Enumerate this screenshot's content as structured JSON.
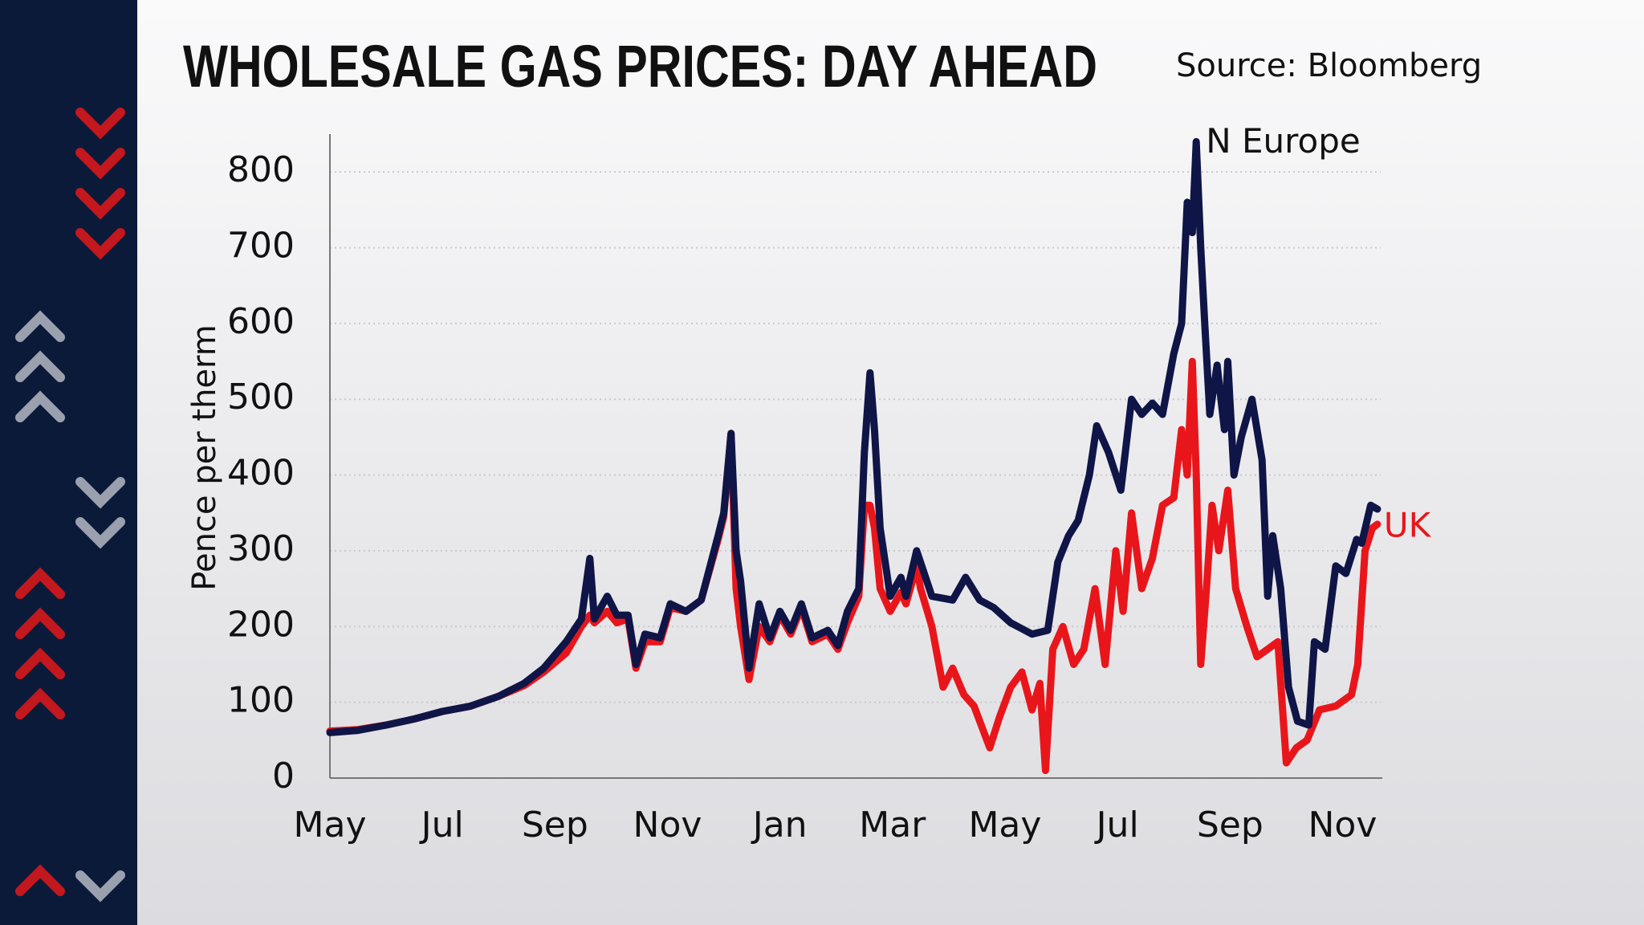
{
  "chart_data": {
    "type": "line",
    "title": "WHOLESALE GAS PRICES: DAY AHEAD",
    "source": "Source: Bloomberg",
    "y_label": "Pence per therm",
    "xlim": [
      0,
      18.65
    ],
    "xticks": [
      {
        "value": 0,
        "label": "May"
      },
      {
        "value": 2,
        "label": "Jul"
      },
      {
        "value": 4,
        "label": "Sep"
      },
      {
        "value": 6,
        "label": "Nov"
      },
      {
        "value": 8,
        "label": "Jan"
      },
      {
        "value": 10,
        "label": "Mar"
      },
      {
        "value": 12,
        "label": "May"
      },
      {
        "value": 14,
        "label": "Jul"
      },
      {
        "value": 16,
        "label": "Sep"
      },
      {
        "value": 18,
        "label": "Nov"
      }
    ],
    "ylim": [
      0,
      850
    ],
    "yticks": [
      0,
      100,
      200,
      300,
      400,
      500,
      600,
      700,
      800
    ],
    "grid": true,
    "series": [
      {
        "name": "N Europe",
        "color": "#0f1547",
        "x": [
          0,
          0.5,
          1,
          1.5,
          2,
          2.5,
          3,
          3.45,
          3.8,
          4.2,
          4.47,
          4.62,
          4.7,
          4.93,
          5.1,
          5.3,
          5.44,
          5.6,
          5.87,
          6.05,
          6.33,
          6.6,
          6.9,
          7.0,
          7.13,
          7.22,
          7.3,
          7.45,
          7.63,
          7.82,
          8.0,
          8.19,
          8.38,
          8.57,
          8.85,
          9.03,
          9.2,
          9.4,
          9.5,
          9.6,
          9.68,
          9.78,
          9.96,
          10.15,
          10.24,
          10.43,
          10.7,
          11.07,
          11.3,
          11.55,
          11.8,
          12.1,
          12.48,
          12.76,
          12.94,
          13.13,
          13.3,
          13.5,
          13.63,
          13.84,
          14.06,
          14.25,
          14.43,
          14.62,
          14.8,
          15.0,
          15.14,
          15.24,
          15.33,
          15.4,
          15.48,
          15.55,
          15.64,
          15.77,
          15.9,
          15.96,
          16.07,
          16.2,
          16.39,
          16.57,
          16.67,
          16.76,
          16.9,
          17.04,
          17.2,
          17.4,
          17.5,
          17.69,
          17.88,
          18.06,
          18.25,
          18.34,
          18.5,
          18.62
        ],
        "values": [
          60,
          63,
          70,
          78,
          88,
          95,
          108,
          125,
          145,
          180,
          210,
          290,
          210,
          240,
          215,
          215,
          150,
          190,
          185,
          230,
          220,
          235,
          320,
          350,
          455,
          300,
          260,
          145,
          230,
          185,
          220,
          195,
          230,
          185,
          195,
          175,
          220,
          250,
          430,
          535,
          460,
          330,
          240,
          265,
          240,
          300,
          240,
          235,
          265,
          235,
          225,
          205,
          190,
          195,
          285,
          320,
          340,
          400,
          465,
          430,
          380,
          500,
          480,
          495,
          480,
          560,
          600,
          760,
          720,
          840,
          700,
          600,
          480,
          545,
          460,
          550,
          400,
          450,
          500,
          420,
          240,
          320,
          250,
          120,
          75,
          70,
          180,
          170,
          280,
          270,
          315,
          310,
          360,
          355
        ]
      },
      {
        "name": "UK",
        "color": "#e8161b",
        "x": [
          0,
          0.5,
          1,
          1.5,
          2,
          2.5,
          3,
          3.45,
          3.8,
          4.2,
          4.47,
          4.62,
          4.7,
          4.93,
          5.1,
          5.3,
          5.44,
          5.6,
          5.87,
          6.05,
          6.33,
          6.6,
          6.9,
          7.0,
          7.13,
          7.22,
          7.3,
          7.45,
          7.63,
          7.82,
          8.0,
          8.19,
          8.38,
          8.57,
          8.85,
          9.03,
          9.2,
          9.4,
          9.5,
          9.6,
          9.68,
          9.78,
          9.96,
          10.15,
          10.24,
          10.43,
          10.5,
          10.7,
          10.9,
          11.07,
          11.27,
          11.45,
          11.73,
          11.9,
          12.1,
          12.3,
          12.48,
          12.62,
          12.72,
          12.85,
          13.03,
          13.22,
          13.4,
          13.6,
          13.78,
          13.97,
          14.1,
          14.25,
          14.43,
          14.62,
          14.8,
          15.0,
          15.14,
          15.24,
          15.33,
          15.4,
          15.48,
          15.58,
          15.68,
          15.8,
          15.96,
          16.1,
          16.3,
          16.48,
          16.67,
          16.85,
          17.0,
          17.18,
          17.37,
          17.59,
          17.88,
          18.16,
          18.27,
          18.4,
          18.53,
          18.62
        ],
        "values": [
          62,
          64,
          70,
          78,
          88,
          95,
          108,
          122,
          140,
          165,
          200,
          215,
          205,
          220,
          205,
          210,
          145,
          180,
          180,
          225,
          220,
          235,
          315,
          345,
          455,
          250,
          200,
          130,
          200,
          180,
          215,
          190,
          225,
          180,
          190,
          170,
          205,
          240,
          360,
          360,
          330,
          250,
          220,
          245,
          230,
          280,
          250,
          200,
          120,
          145,
          110,
          95,
          40,
          80,
          120,
          140,
          90,
          125,
          10,
          170,
          200,
          150,
          170,
          250,
          150,
          300,
          220,
          350,
          250,
          290,
          360,
          370,
          460,
          400,
          550,
          400,
          150,
          250,
          360,
          300,
          380,
          250,
          200,
          160,
          170,
          180,
          20,
          40,
          50,
          90,
          95,
          110,
          150,
          300,
          330,
          335
        ]
      }
    ]
  }
}
